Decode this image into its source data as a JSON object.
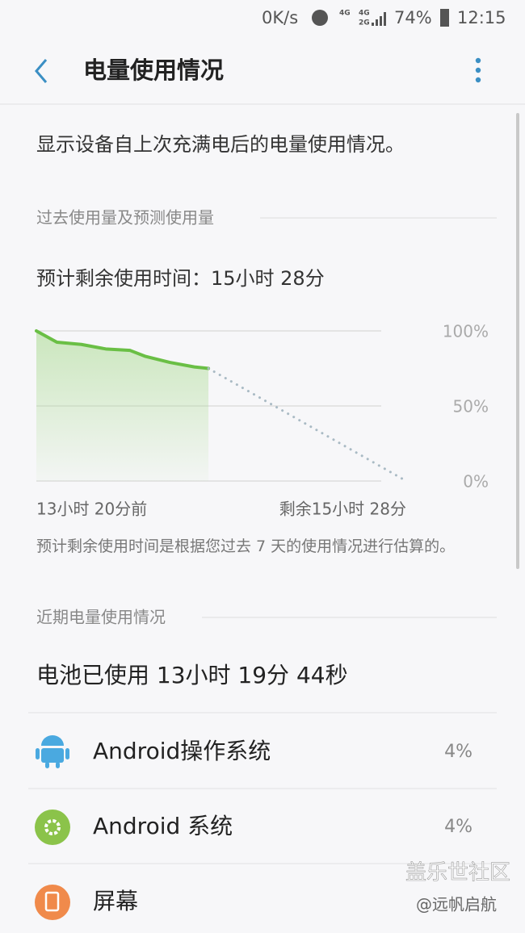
{
  "status_bar": {
    "speed": "0K/s",
    "network": [
      "4G",
      "4G",
      "2G"
    ],
    "battery": "74%",
    "time": "12:15"
  },
  "header": {
    "title": "电量使用情况"
  },
  "description": "显示设备自上次充满电后的电量使用情况。",
  "history_section": {
    "title": "过去使用量及预测使用量",
    "estimate": "预计剩余使用时间：15小时 28分"
  },
  "chart_data": {
    "type": "line",
    "x": [
      0,
      1.6,
      3.5,
      5.4,
      7.3,
      8.5,
      10.4,
      12.3,
      13.4,
      28.8
    ],
    "series": [
      {
        "color": "#6abf45",
        "fill": true,
        "values": [
          100,
          92.5,
          91,
          88,
          87,
          83,
          79,
          76,
          75,
          null
        ]
      },
      {
        "color": "#a9bac4",
        "style": "dotted",
        "values": [
          null,
          null,
          null,
          null,
          null,
          null,
          null,
          null,
          75,
          0
        ]
      }
    ],
    "xlim": [
      0,
      28.8
    ],
    "xticks": [
      {
        "value": 0,
        "label": "13小时 20分前"
      },
      {
        "value": 28.8,
        "label": "剩余15小时 28分"
      }
    ],
    "ylim": [
      0,
      100
    ],
    "yticks": [
      {
        "value": 0,
        "label": "0%"
      },
      {
        "value": 50,
        "label": "50%"
      },
      {
        "value": 100,
        "label": "100%"
      }
    ],
    "grid": true
  },
  "note": "预计剩余使用时间是根据您过去 7 天的使用情况进行估算的。",
  "recent_section": {
    "title": "近期电量使用情况",
    "battery_used": "电池已使用 13小时 19分 44秒",
    "apps": [
      {
        "name": "Android操作系统",
        "percent": "4%"
      },
      {
        "name": "Android 系统",
        "percent": "4%"
      },
      {
        "name": "屏幕"
      }
    ]
  },
  "watermark": {
    "title": "盖乐世社区",
    "author": "@远帆启航"
  }
}
